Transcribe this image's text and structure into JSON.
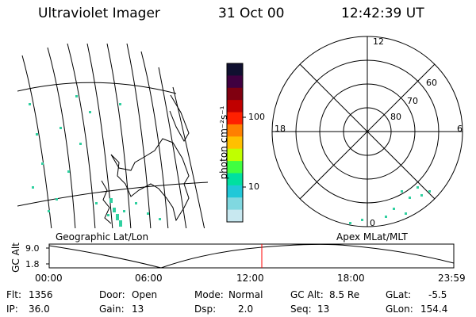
{
  "header": {
    "title": "Ultraviolet Imager",
    "date": "31 Oct 00",
    "time": "12:42:39 UT"
  },
  "colorbar": {
    "unit_label": "photon cm⁻²s⁻¹",
    "ticks": [
      "100",
      "10"
    ],
    "colors": [
      "#101030",
      "#400040",
      "#800010",
      "#c00000",
      "#ff2000",
      "#ff8000",
      "#ffc000",
      "#c0ff00",
      "#40ff40",
      "#00e0a0",
      "#20c8d8",
      "#80d8e0",
      "#c8e8f0"
    ]
  },
  "geo_map": {
    "label": "Geographic Lat/Lon",
    "pixel_color": "#30d0a0"
  },
  "polar_plot": {
    "label": "Apex  MLat/MLT",
    "mlt_labels": {
      "top": "12",
      "left": "18",
      "right": "6",
      "bottom": "0"
    },
    "lat_labels": [
      "60",
      "70",
      "80"
    ]
  },
  "altitude_plot": {
    "axis_label": "GC Alt",
    "ticks": [
      "9.0",
      "1.8"
    ],
    "time_ticks": [
      "00:00",
      "06:00",
      "12:00",
      "18:00",
      "23:59"
    ],
    "current_time_color": "#ff0000"
  },
  "status": {
    "row1": [
      {
        "key": "Flt:",
        "value": "1356"
      },
      {
        "key": "Door:",
        "value": "Open"
      },
      {
        "key": "Mode:",
        "value": "Normal"
      },
      {
        "key": "GC Alt:",
        "value": "8.5 Re"
      },
      {
        "key": "GLat:",
        "value": "-5.5"
      }
    ],
    "row2": [
      {
        "key": "IP:",
        "value": "36.0"
      },
      {
        "key": "Gain:",
        "value": "13"
      },
      {
        "key": "Dsp:",
        "value": "2.0"
      },
      {
        "key": "Seq:",
        "value": "13"
      },
      {
        "key": "GLon:",
        "value": "154.4"
      }
    ]
  }
}
